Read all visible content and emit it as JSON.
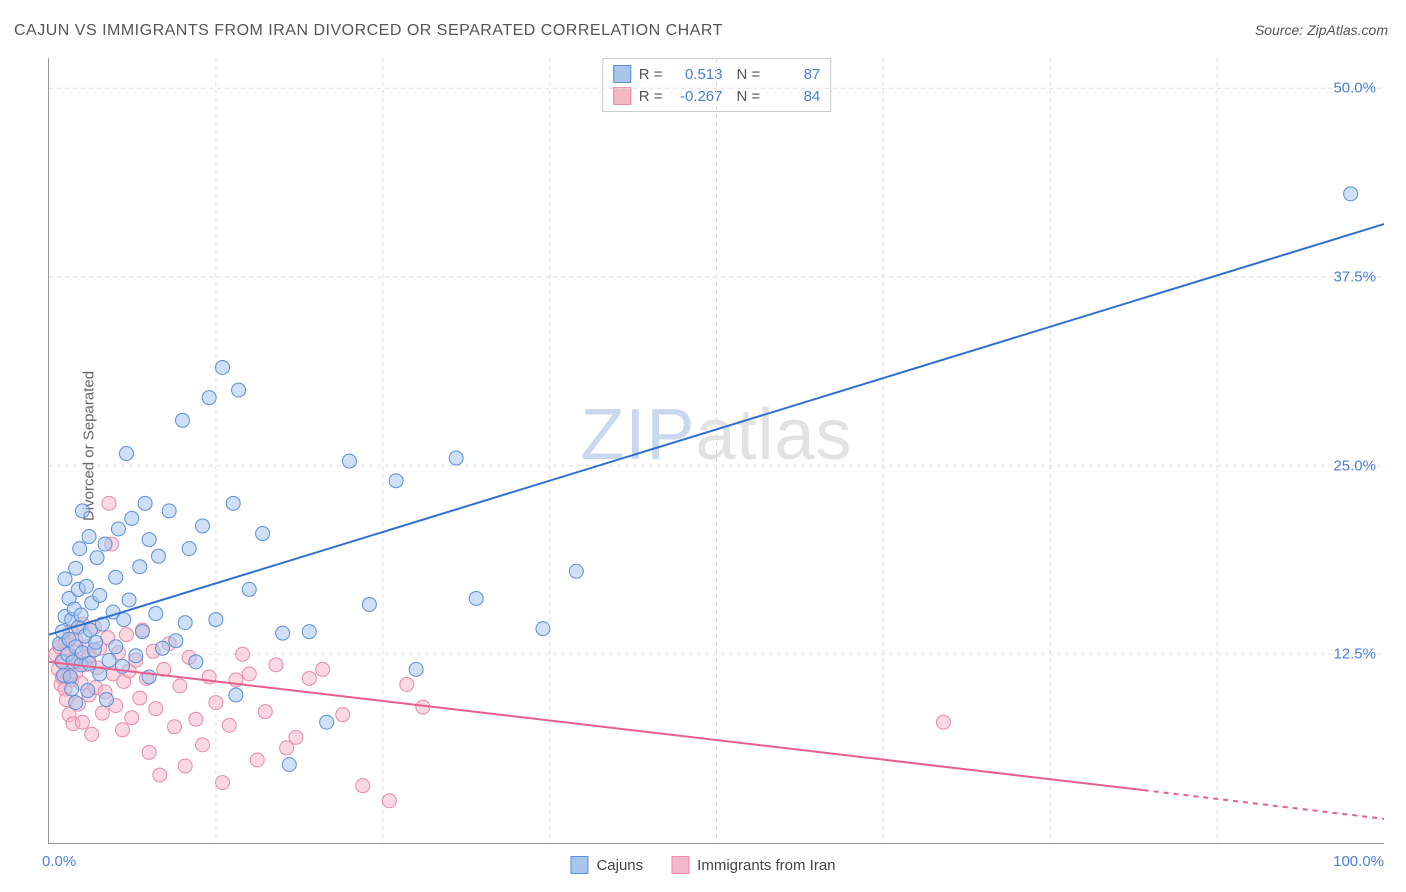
{
  "title": "CAJUN VS IMMIGRANTS FROM IRAN DIVORCED OR SEPARATED CORRELATION CHART",
  "source_label": "Source:",
  "source_value": "ZipAtlas.com",
  "watermark_zip": "ZIP",
  "watermark_atlas": "atlas",
  "ylabel": "Divorced or Separated",
  "chart": {
    "type": "scatter-with-regression",
    "xlim": [
      0,
      100
    ],
    "ylim": [
      0,
      52
    ],
    "y_ticks": [
      12.5,
      25.0,
      37.5,
      50.0
    ],
    "y_tick_labels": [
      "12.5%",
      "25.0%",
      "37.5%",
      "50.0%"
    ],
    "x_origin_label": "0.0%",
    "x_max_label": "100.0%",
    "x_gridlines": [
      12.5,
      25,
      37.5,
      50,
      62.5,
      75,
      87.5
    ],
    "background_color": "#ffffff",
    "grid_color": "#dddddd",
    "axis_color": "#999999",
    "label_color": "#4a7fd8",
    "marker_radius": 7,
    "marker_opacity": 0.55,
    "line_width": 2,
    "series": [
      {
        "name": "Cajuns",
        "color_fill": "#a8c5ec",
        "color_stroke": "#5b8fd6",
        "line_color": "#2f6fd0",
        "R": "0.513",
        "N": "87",
        "regression": {
          "x1": 0,
          "y1": 13.8,
          "x2": 100,
          "y2": 41.0
        },
        "points": [
          [
            0.8,
            13.2
          ],
          [
            1.0,
            14.0
          ],
          [
            1.0,
            12.0
          ],
          [
            1.1,
            11.1
          ],
          [
            1.2,
            17.5
          ],
          [
            1.2,
            15.0
          ],
          [
            1.4,
            12.5
          ],
          [
            1.5,
            16.2
          ],
          [
            1.5,
            13.5
          ],
          [
            1.6,
            11.0
          ],
          [
            1.7,
            14.8
          ],
          [
            1.7,
            10.2
          ],
          [
            1.8,
            12.0
          ],
          [
            1.9,
            15.5
          ],
          [
            2.0,
            18.2
          ],
          [
            2.0,
            9.3
          ],
          [
            2.0,
            13.0
          ],
          [
            2.2,
            14.3
          ],
          [
            2.2,
            16.8
          ],
          [
            2.3,
            19.5
          ],
          [
            2.4,
            11.8
          ],
          [
            2.4,
            15.1
          ],
          [
            2.5,
            22.0
          ],
          [
            2.5,
            12.6
          ],
          [
            2.7,
            13.7
          ],
          [
            2.8,
            17.0
          ],
          [
            2.9,
            10.1
          ],
          [
            3.0,
            20.3
          ],
          [
            3.0,
            11.9
          ],
          [
            3.1,
            14.1
          ],
          [
            3.2,
            15.9
          ],
          [
            3.4,
            12.8
          ],
          [
            3.5,
            13.3
          ],
          [
            3.6,
            18.9
          ],
          [
            3.8,
            11.2
          ],
          [
            3.8,
            16.4
          ],
          [
            4.0,
            14.5
          ],
          [
            4.2,
            19.8
          ],
          [
            4.3,
            9.5
          ],
          [
            4.5,
            12.1
          ],
          [
            4.8,
            15.3
          ],
          [
            5.0,
            17.6
          ],
          [
            5.0,
            13.0
          ],
          [
            5.2,
            20.8
          ],
          [
            5.5,
            11.7
          ],
          [
            5.6,
            14.8
          ],
          [
            5.8,
            25.8
          ],
          [
            6.0,
            16.1
          ],
          [
            6.2,
            21.5
          ],
          [
            6.5,
            12.4
          ],
          [
            6.8,
            18.3
          ],
          [
            7.0,
            14.0
          ],
          [
            7.2,
            22.5
          ],
          [
            7.5,
            11.0
          ],
          [
            7.5,
            20.1
          ],
          [
            8.0,
            15.2
          ],
          [
            8.2,
            19.0
          ],
          [
            8.5,
            12.9
          ],
          [
            9.0,
            22.0
          ],
          [
            9.5,
            13.4
          ],
          [
            10.0,
            28.0
          ],
          [
            10.2,
            14.6
          ],
          [
            10.5,
            19.5
          ],
          [
            11.0,
            12.0
          ],
          [
            11.5,
            21.0
          ],
          [
            12.0,
            29.5
          ],
          [
            12.5,
            14.8
          ],
          [
            13.0,
            31.5
          ],
          [
            13.8,
            22.5
          ],
          [
            14.0,
            9.8
          ],
          [
            14.2,
            30.0
          ],
          [
            15.0,
            16.8
          ],
          [
            16.0,
            20.5
          ],
          [
            17.5,
            13.9
          ],
          [
            18.0,
            5.2
          ],
          [
            19.5,
            14.0
          ],
          [
            20.8,
            8.0
          ],
          [
            22.5,
            25.3
          ],
          [
            24.0,
            15.8
          ],
          [
            26.0,
            24.0
          ],
          [
            27.5,
            11.5
          ],
          [
            30.5,
            25.5
          ],
          [
            32.0,
            16.2
          ],
          [
            37.0,
            14.2
          ],
          [
            39.5,
            18.0
          ],
          [
            97.5,
            43.0
          ]
        ]
      },
      {
        "name": "Immigrants from Iran",
        "color_fill": "#f5b8c9",
        "color_stroke": "#e88aa8",
        "line_color": "#e85f8e",
        "R": "-0.267",
        "N": "84",
        "regression": {
          "x1": 0,
          "y1": 12.0,
          "x2": 82,
          "y2": 3.5
        },
        "regression_dashed": {
          "x1": 82,
          "y1": 3.5,
          "x2": 100,
          "y2": 1.6
        },
        "points": [
          [
            0.5,
            12.5
          ],
          [
            0.7,
            11.5
          ],
          [
            0.8,
            13.0
          ],
          [
            0.9,
            10.5
          ],
          [
            1.0,
            12.1
          ],
          [
            1.0,
            11.0
          ],
          [
            1.2,
            10.2
          ],
          [
            1.2,
            13.2
          ],
          [
            1.3,
            9.5
          ],
          [
            1.4,
            12.8
          ],
          [
            1.5,
            11.1
          ],
          [
            1.5,
            8.5
          ],
          [
            1.6,
            14.0
          ],
          [
            1.7,
            10.8
          ],
          [
            1.8,
            12.2
          ],
          [
            1.8,
            7.9
          ],
          [
            2.0,
            13.5
          ],
          [
            2.0,
            11.3
          ],
          [
            2.2,
            9.2
          ],
          [
            2.2,
            12.0
          ],
          [
            2.4,
            10.6
          ],
          [
            2.5,
            14.5
          ],
          [
            2.5,
            8.0
          ],
          [
            2.7,
            11.8
          ],
          [
            2.8,
            13.0
          ],
          [
            3.0,
            9.8
          ],
          [
            3.0,
            12.4
          ],
          [
            3.2,
            7.2
          ],
          [
            3.4,
            14.3
          ],
          [
            3.5,
            10.3
          ],
          [
            3.6,
            11.6
          ],
          [
            3.8,
            12.9
          ],
          [
            4.0,
            8.6
          ],
          [
            4.2,
            10.0
          ],
          [
            4.4,
            13.6
          ],
          [
            4.5,
            22.5
          ],
          [
            4.7,
            19.8
          ],
          [
            4.8,
            11.2
          ],
          [
            5.0,
            9.1
          ],
          [
            5.2,
            12.6
          ],
          [
            5.5,
            7.5
          ],
          [
            5.6,
            10.7
          ],
          [
            5.8,
            13.8
          ],
          [
            6.0,
            11.4
          ],
          [
            6.2,
            8.3
          ],
          [
            6.5,
            12.1
          ],
          [
            6.8,
            9.6
          ],
          [
            7.0,
            14.1
          ],
          [
            7.3,
            10.9
          ],
          [
            7.5,
            6.0
          ],
          [
            7.8,
            12.7
          ],
          [
            8.0,
            8.9
          ],
          [
            8.3,
            4.5
          ],
          [
            8.6,
            11.5
          ],
          [
            9.0,
            13.2
          ],
          [
            9.4,
            7.7
          ],
          [
            9.8,
            10.4
          ],
          [
            10.2,
            5.1
          ],
          [
            10.5,
            12.3
          ],
          [
            11.0,
            8.2
          ],
          [
            11.5,
            6.5
          ],
          [
            12.0,
            11.0
          ],
          [
            12.5,
            9.3
          ],
          [
            13.0,
            4.0
          ],
          [
            13.5,
            7.8
          ],
          [
            14.0,
            10.8
          ],
          [
            14.5,
            12.5
          ],
          [
            15.0,
            11.2
          ],
          [
            15.6,
            5.5
          ],
          [
            16.2,
            8.7
          ],
          [
            17.0,
            11.8
          ],
          [
            17.8,
            6.3
          ],
          [
            18.5,
            7.0
          ],
          [
            19.5,
            10.9
          ],
          [
            20.5,
            11.5
          ],
          [
            22.0,
            8.5
          ],
          [
            23.5,
            3.8
          ],
          [
            25.5,
            2.8
          ],
          [
            26.8,
            10.5
          ],
          [
            28.0,
            9.0
          ],
          [
            67.0,
            8.0
          ]
        ]
      }
    ]
  },
  "legend_top": {
    "r_label": "R =",
    "n_label": "N ="
  },
  "legend_bottom": [
    {
      "label": "Cajuns"
    },
    {
      "label": "Immigrants from Iran"
    }
  ]
}
